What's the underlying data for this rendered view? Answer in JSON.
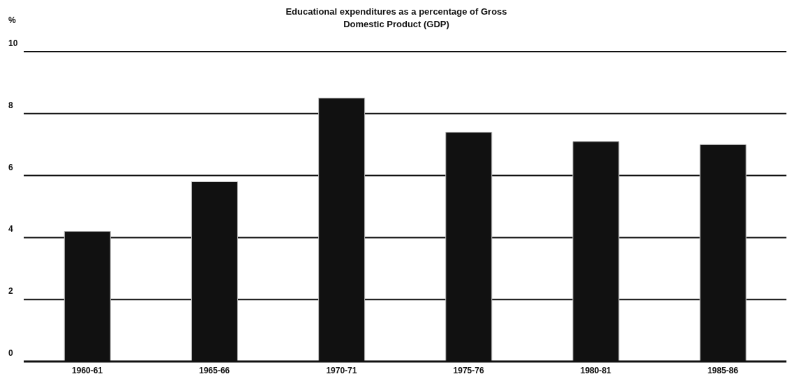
{
  "chart_data": {
    "type": "bar",
    "title": "Educational expenditures as a percentage of Gross Domestic Product (GDP)",
    "ylabel": "%",
    "categories": [
      "1960-61",
      "1965-66",
      "1970-71",
      "1975-76",
      "1980-81",
      "1985-86"
    ],
    "values": [
      4.2,
      5.8,
      8.5,
      7.4,
      7.1,
      7.0
    ],
    "color": "#111111",
    "ylim": [
      0,
      10
    ],
    "yticks": [
      0,
      2,
      4,
      6,
      8,
      10
    ],
    "grid": "y"
  }
}
